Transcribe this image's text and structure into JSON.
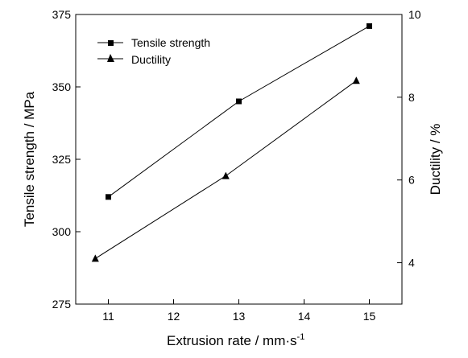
{
  "chart_data": {
    "type": "line",
    "title": "",
    "xlabel": "Extrusion rate / mm·s",
    "xlabel_superscript": "-1",
    "xlim": [
      10.5,
      15.5
    ],
    "xticks": [
      11,
      12,
      13,
      14,
      15
    ],
    "y_left": {
      "label": "Tensile strength / MPa",
      "lim": [
        275,
        375
      ],
      "ticks": [
        275,
        300,
        325,
        350,
        375
      ]
    },
    "y_right": {
      "label": "Ductility / %",
      "lim": [
        3,
        10
      ],
      "ticks": [
        4,
        6,
        8,
        10
      ]
    },
    "grid": false,
    "legend_position": "top-left",
    "series": [
      {
        "name": "Tensile strength",
        "marker": "square",
        "axis": "left",
        "x": [
          11,
          13,
          15
        ],
        "y": [
          312,
          345,
          371
        ]
      },
      {
        "name": "Ductility",
        "marker": "triangle",
        "axis": "right",
        "x": [
          10.8,
          12.8,
          14.8
        ],
        "y": [
          4.1,
          6.1,
          8.4
        ]
      }
    ]
  }
}
